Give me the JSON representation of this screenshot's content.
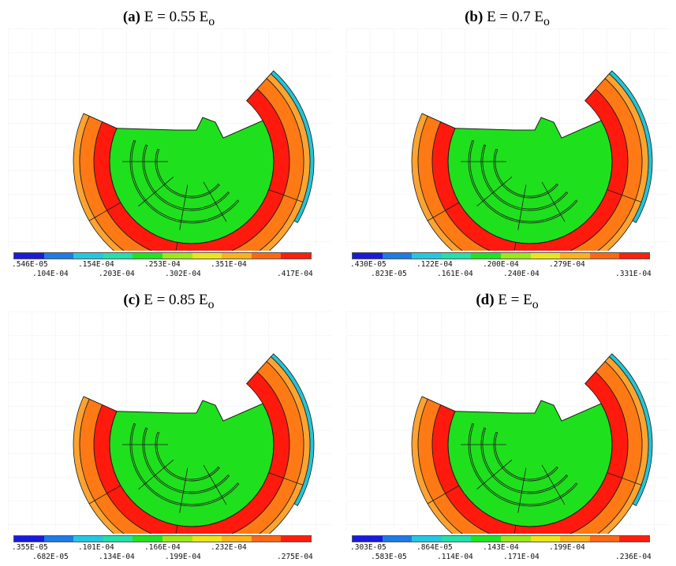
{
  "colors": {
    "green": "#1fe01c",
    "red": "#ff1a0d",
    "orange_dark": "#ff7a14",
    "orange_light": "#ffa330",
    "cyan": "#22c5d8",
    "line": "#1b1b1b",
    "colormap": [
      "#1a1adb",
      "#1f7ae6",
      "#25c7e0",
      "#25e0a8",
      "#22e322",
      "#9ce81b",
      "#ece51b",
      "#ffb11c",
      "#ff6714",
      "#ff1d0d"
    ]
  },
  "panels": [
    {
      "label": "(a)",
      "title": "E = 0.55 E",
      "subscript": "o",
      "colorbar": {
        "top_labels": [
          ".546E-05",
          ".154E-04",
          ".253E-04",
          ".351E-04"
        ],
        "bottom_labels": [
          ".104E-04",
          ".203E-04",
          ".302E-04",
          ".417E-04"
        ]
      }
    },
    {
      "label": "(b)",
      "title": "E = 0.7 E",
      "subscript": "o",
      "colorbar": {
        "top_labels": [
          ".430E-05",
          ".122E-04",
          ".200E-04",
          ".279E-04"
        ],
        "bottom_labels": [
          ".823E-05",
          ".161E-04",
          ".240E-04",
          ".331E-04"
        ]
      }
    },
    {
      "label": "(c)",
      "title": "E = 0.85 E",
      "subscript": "o",
      "colorbar": {
        "top_labels": [
          ".355E-05",
          ".101E-04",
          ".166E-04",
          ".232E-04"
        ],
        "bottom_labels": [
          ".682E-05",
          ".134E-04",
          ".199E-04",
          ".275E-04"
        ]
      }
    },
    {
      "label": "(d)",
      "title": "E = E",
      "subscript": "o",
      "colorbar": {
        "top_labels": [
          ".303E-05",
          ".864E-05",
          ".143E-04",
          ".199E-04"
        ],
        "bottom_labels": [
          ".583E-05",
          ".114E-04",
          ".171E-04",
          ".236E-04"
        ]
      }
    }
  ]
}
